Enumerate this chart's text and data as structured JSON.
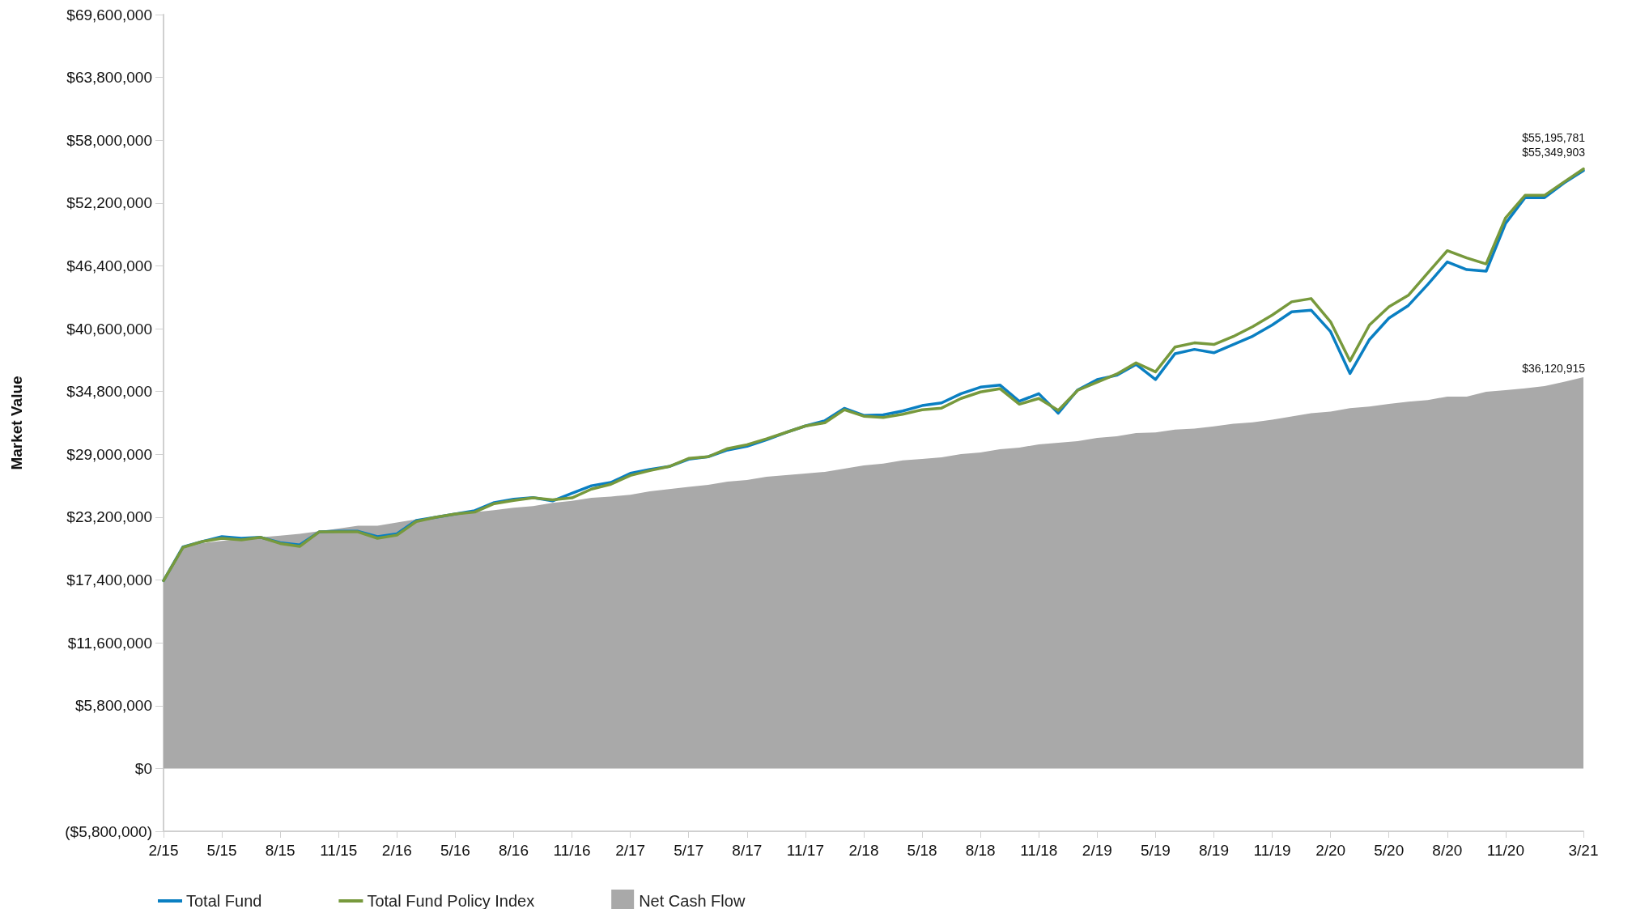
{
  "chart_data": {
    "type": "line",
    "ylabel": "Market Value",
    "categories": [
      "2/15",
      null,
      null,
      "5/15",
      null,
      null,
      "8/15",
      null,
      null,
      "11/15",
      null,
      null,
      "2/16",
      null,
      null,
      "5/16",
      null,
      null,
      "8/16",
      null,
      null,
      "11/16",
      null,
      null,
      "2/17",
      null,
      null,
      "5/17",
      null,
      null,
      "8/17",
      null,
      null,
      "11/17",
      null,
      null,
      "2/18",
      null,
      null,
      "5/18",
      null,
      null,
      "8/18",
      null,
      null,
      "11/18",
      null,
      null,
      "2/19",
      null,
      null,
      "5/19",
      null,
      null,
      "8/19",
      null,
      null,
      "11/19",
      null,
      null,
      "2/20",
      null,
      null,
      "5/20",
      null,
      null,
      "8/20",
      null,
      null,
      "11/20",
      null,
      null,
      null,
      "3/21"
    ],
    "series": [
      {
        "name": "Net Cash Flow",
        "type": "area",
        "color": "#a9a9a9",
        "values": [
          17340000,
          20300000,
          20800000,
          21000000,
          21200000,
          21340000,
          21500000,
          21660000,
          21900000,
          22140000,
          22410000,
          22410000,
          22710000,
          23000000,
          23190000,
          23490000,
          23670000,
          23850000,
          24070000,
          24220000,
          24520000,
          24700000,
          24980000,
          25100000,
          25270000,
          25580000,
          25790000,
          26000000,
          26180000,
          26480000,
          26630000,
          26930000,
          27080000,
          27230000,
          27380000,
          27680000,
          27970000,
          28150000,
          28450000,
          28570000,
          28720000,
          29020000,
          29170000,
          29470000,
          29620000,
          29920000,
          30070000,
          30220000,
          30520000,
          30670000,
          30960000,
          31030000,
          31280000,
          31370000,
          31590000,
          31830000,
          31950000,
          32190000,
          32500000,
          32800000,
          32950000,
          33260000,
          33420000,
          33660000,
          33870000,
          34020000,
          34330000,
          34330000,
          34780000,
          34930000,
          35090000,
          35300000,
          35700000,
          36120915
        ],
        "value_labels": [
          null,
          null,
          null,
          null,
          null,
          null,
          null,
          null,
          null,
          null,
          null,
          null,
          null,
          null,
          null,
          null,
          null,
          null,
          null,
          null,
          null,
          null,
          null,
          null,
          null,
          null,
          null,
          null,
          null,
          null,
          null,
          null,
          null,
          null,
          null,
          null,
          null,
          null,
          null,
          null,
          null,
          null,
          null,
          null,
          null,
          null,
          null,
          null,
          null,
          null,
          null,
          null,
          null,
          null,
          null,
          null,
          null,
          null,
          null,
          null,
          null,
          null,
          null,
          null,
          null,
          null,
          null,
          null,
          null,
          null,
          null,
          null,
          null,
          "$36,120,915"
        ]
      },
      {
        "name": "Total Fund",
        "color": "#0a7fc2",
        "values": [
          17340000,
          20450000,
          20950000,
          21400000,
          21250000,
          21340000,
          20850000,
          20630000,
          21840000,
          21900000,
          21900000,
          21400000,
          21660000,
          22900000,
          23190000,
          23490000,
          23800000,
          24550000,
          24850000,
          25000000,
          24700000,
          25400000,
          26100000,
          26400000,
          27250000,
          27600000,
          27880000,
          28550000,
          28780000,
          29400000,
          29750000,
          30350000,
          31020000,
          31620000,
          32100000,
          33250000,
          32600000,
          32650000,
          33000000,
          33500000,
          33750000,
          34600000,
          35200000,
          35400000,
          33900000,
          34600000,
          32800000,
          34950000,
          35900000,
          36300000,
          37300000,
          35910000,
          38290000,
          38690000,
          38380000,
          39140000,
          39910000,
          40940000,
          42160000,
          42310000,
          40330000,
          36460000,
          39600000,
          41580000,
          42740000,
          44690000,
          46760000,
          46060000,
          45910000,
          50330000,
          52700000,
          52700000,
          54050000,
          55195781
        ],
        "value_labels": [
          null,
          null,
          null,
          null,
          null,
          null,
          null,
          null,
          null,
          null,
          null,
          null,
          null,
          null,
          null,
          null,
          null,
          null,
          null,
          null,
          null,
          null,
          null,
          null,
          null,
          null,
          null,
          null,
          null,
          null,
          null,
          null,
          null,
          null,
          null,
          null,
          null,
          null,
          null,
          null,
          null,
          null,
          null,
          null,
          null,
          null,
          null,
          null,
          null,
          null,
          null,
          null,
          null,
          null,
          null,
          null,
          null,
          null,
          null,
          null,
          null,
          null,
          null,
          null,
          null,
          null,
          null,
          null,
          null,
          null,
          null,
          null,
          null,
          "$55,195,781"
        ]
      },
      {
        "name": "Total Fund Policy Index",
        "color": "#77993c",
        "values": [
          17340000,
          20410000,
          20950000,
          21250000,
          21100000,
          21340000,
          20770000,
          20500000,
          21840000,
          21840000,
          21840000,
          21250000,
          21540000,
          22800000,
          23190000,
          23490000,
          23670000,
          24450000,
          24740000,
          24980000,
          24800000,
          24980000,
          25790000,
          26240000,
          27050000,
          27500000,
          27880000,
          28630000,
          28780000,
          29530000,
          29890000,
          30430000,
          31020000,
          31620000,
          31920000,
          33120000,
          32520000,
          32400000,
          32700000,
          33120000,
          33270000,
          34160000,
          34760000,
          35060000,
          33630000,
          34160000,
          33060000,
          34910000,
          35660000,
          36410000,
          37450000,
          36620000,
          38900000,
          39290000,
          39140000,
          39880000,
          40790000,
          41860000,
          43080000,
          43380000,
          41240000,
          37620000,
          40940000,
          42620000,
          43680000,
          45750000,
          47800000,
          47130000,
          46580000,
          50840000,
          52910000,
          52910000,
          54140000,
          55349903
        ],
        "value_labels": [
          null,
          null,
          null,
          null,
          null,
          null,
          null,
          null,
          null,
          null,
          null,
          null,
          null,
          null,
          null,
          null,
          null,
          null,
          null,
          null,
          null,
          null,
          null,
          null,
          null,
          null,
          null,
          null,
          null,
          null,
          null,
          null,
          null,
          null,
          null,
          null,
          null,
          null,
          null,
          null,
          null,
          null,
          null,
          null,
          null,
          null,
          null,
          null,
          null,
          null,
          null,
          null,
          null,
          null,
          null,
          null,
          null,
          null,
          null,
          null,
          null,
          null,
          null,
          null,
          null,
          null,
          null,
          null,
          null,
          null,
          null,
          null,
          null,
          "$55,349,903"
        ]
      }
    ],
    "ylim": [
      -5800000,
      69600000
    ],
    "yticks": [
      {
        "value": -5800000,
        "label": "($5,800,000)"
      },
      {
        "value": 0,
        "label": "$0"
      },
      {
        "value": 5800000,
        "label": "$5,800,000"
      },
      {
        "value": 11600000,
        "label": "$11,600,000"
      },
      {
        "value": 17400000,
        "label": "$17,400,000"
      },
      {
        "value": 23200000,
        "label": "$23,200,000"
      },
      {
        "value": 29000000,
        "label": "$29,000,000"
      },
      {
        "value": 34800000,
        "label": "$34,800,000"
      },
      {
        "value": 40600000,
        "label": "$40,600,000"
      },
      {
        "value": 46400000,
        "label": "$46,400,000"
      },
      {
        "value": 52200000,
        "label": "$52,200,000"
      },
      {
        "value": 58000000,
        "label": "$58,000,000"
      },
      {
        "value": 63800000,
        "label": "$63,800,000"
      },
      {
        "value": 69600000,
        "label": "$69,600,000"
      }
    ],
    "grid": false,
    "legend": "bottom left",
    "line_style": "solid",
    "marker": "none"
  }
}
